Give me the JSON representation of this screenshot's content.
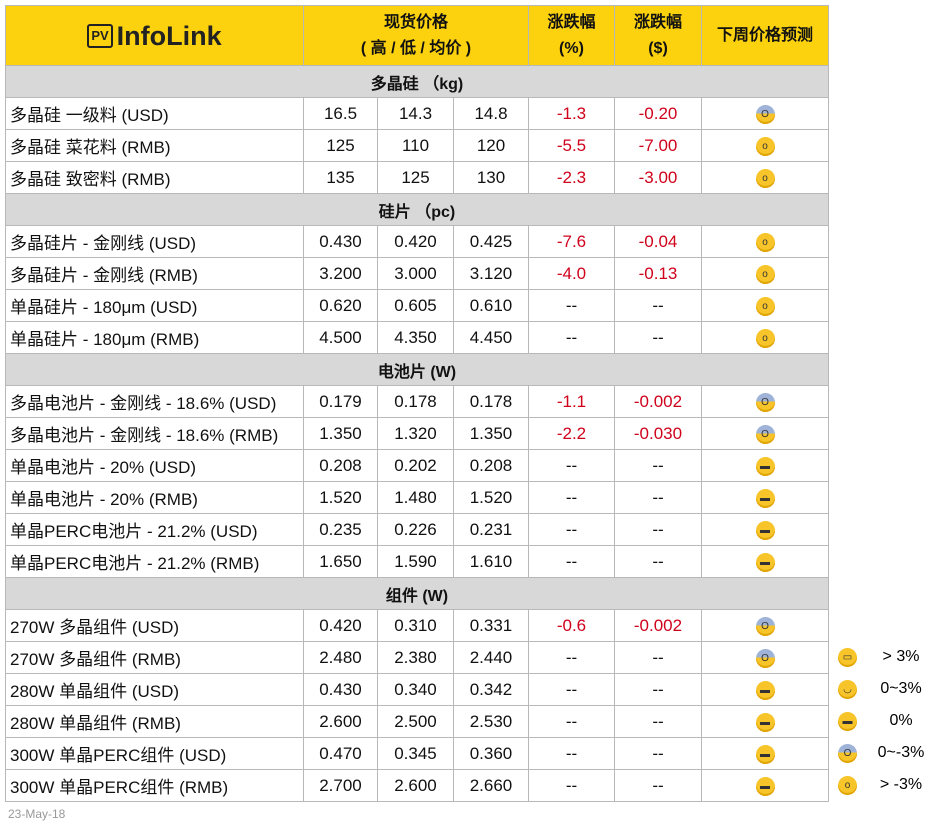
{
  "header": {
    "logo": "InfoLink",
    "logo_badge": "PV",
    "price_l1": "现货价格",
    "price_l2": "( 高 / 低 / 均价 )",
    "pct_l1": "涨跌幅",
    "pct_l2": "(%)",
    "usd_l1": "涨跌幅",
    "usd_l2": "($)",
    "forecast": "下周价格预测"
  },
  "sections": [
    {
      "title": "多晶硅 （kg)",
      "rows": [
        [
          "多晶硅 一级料 (USD)",
          "16.5",
          "14.3",
          "14.8",
          "-1.3",
          "-0.20",
          "scream"
        ],
        [
          "多晶硅 菜花料 (RMB)",
          "125",
          "110",
          "120",
          "-5.5",
          "-7.00",
          "astonished"
        ],
        [
          "多晶硅 致密料 (RMB)",
          "135",
          "125",
          "130",
          "-2.3",
          "-3.00",
          "astonished"
        ]
      ]
    },
    {
      "title": "硅片 （pc)",
      "rows": [
        [
          "多晶硅片 - 金刚线 (USD)",
          "0.430",
          "0.420",
          "0.425",
          "-7.6",
          "-0.04",
          "astonished"
        ],
        [
          "多晶硅片 - 金刚线 (RMB)",
          "3.200",
          "3.000",
          "3.120",
          "-4.0",
          "-0.13",
          "astonished"
        ],
        [
          "单晶硅片 - 180μm (USD)",
          "0.620",
          "0.605",
          "0.610",
          "--",
          "--",
          "astonished"
        ],
        [
          "单晶硅片 - 180μm (RMB)",
          "4.500",
          "4.350",
          "4.450",
          "--",
          "--",
          "astonished"
        ]
      ]
    },
    {
      "title": "电池片 (W)",
      "rows": [
        [
          "多晶电池片 - 金刚线 - 18.6% (USD)",
          "0.179",
          "0.178",
          "0.178",
          "-1.1",
          "-0.002",
          "scream"
        ],
        [
          "多晶电池片 - 金刚线 - 18.6% (RMB)",
          "1.350",
          "1.320",
          "1.350",
          "-2.2",
          "-0.030",
          "scream"
        ],
        [
          "单晶电池片 - 20% (USD)",
          "0.208",
          "0.202",
          "0.208",
          "--",
          "--",
          "sunglasses"
        ],
        [
          "单晶电池片 - 20% (RMB)",
          "1.520",
          "1.480",
          "1.520",
          "--",
          "--",
          "sunglasses"
        ],
        [
          "单晶PERC电池片 - 21.2% (USD)",
          "0.235",
          "0.226",
          "0.231",
          "--",
          "--",
          "sunglasses"
        ],
        [
          "单晶PERC电池片 - 21.2% (RMB)",
          "1.650",
          "1.590",
          "1.610",
          "--",
          "--",
          "sunglasses"
        ]
      ]
    },
    {
      "title": "组件 (W)",
      "rows": [
        [
          "270W 多晶组件 (USD)",
          "0.420",
          "0.310",
          "0.331",
          "-0.6",
          "-0.002",
          "scream"
        ],
        [
          "270W 多晶组件 (RMB)",
          "2.480",
          "2.380",
          "2.440",
          "--",
          "--",
          "scream"
        ],
        [
          "280W 单晶组件 (USD)",
          "0.430",
          "0.340",
          "0.342",
          "--",
          "--",
          "sunglasses"
        ],
        [
          "280W 单晶组件 (RMB)",
          "2.600",
          "2.500",
          "2.530",
          "--",
          "--",
          "sunglasses"
        ],
        [
          "300W 单晶PERC组件 (USD)",
          "0.470",
          "0.345",
          "0.360",
          "--",
          "--",
          "sunglasses"
        ],
        [
          "300W 单晶PERC组件 (RMB)",
          "2.700",
          "2.600",
          "2.660",
          "--",
          "--",
          "sunglasses"
        ]
      ]
    }
  ],
  "legend": [
    {
      "icon": "grin",
      "text": "> 3%"
    },
    {
      "icon": "smile",
      "text": "0~3%"
    },
    {
      "icon": "sunglasses",
      "text": "0%"
    },
    {
      "icon": "scream",
      "text": "0~-3%"
    },
    {
      "icon": "astonished",
      "text": "> -3%"
    }
  ],
  "date": "23-May-18",
  "colors": {
    "header": "#fcd20f",
    "section": "#d8d8d8",
    "negative": "#d0021b"
  }
}
